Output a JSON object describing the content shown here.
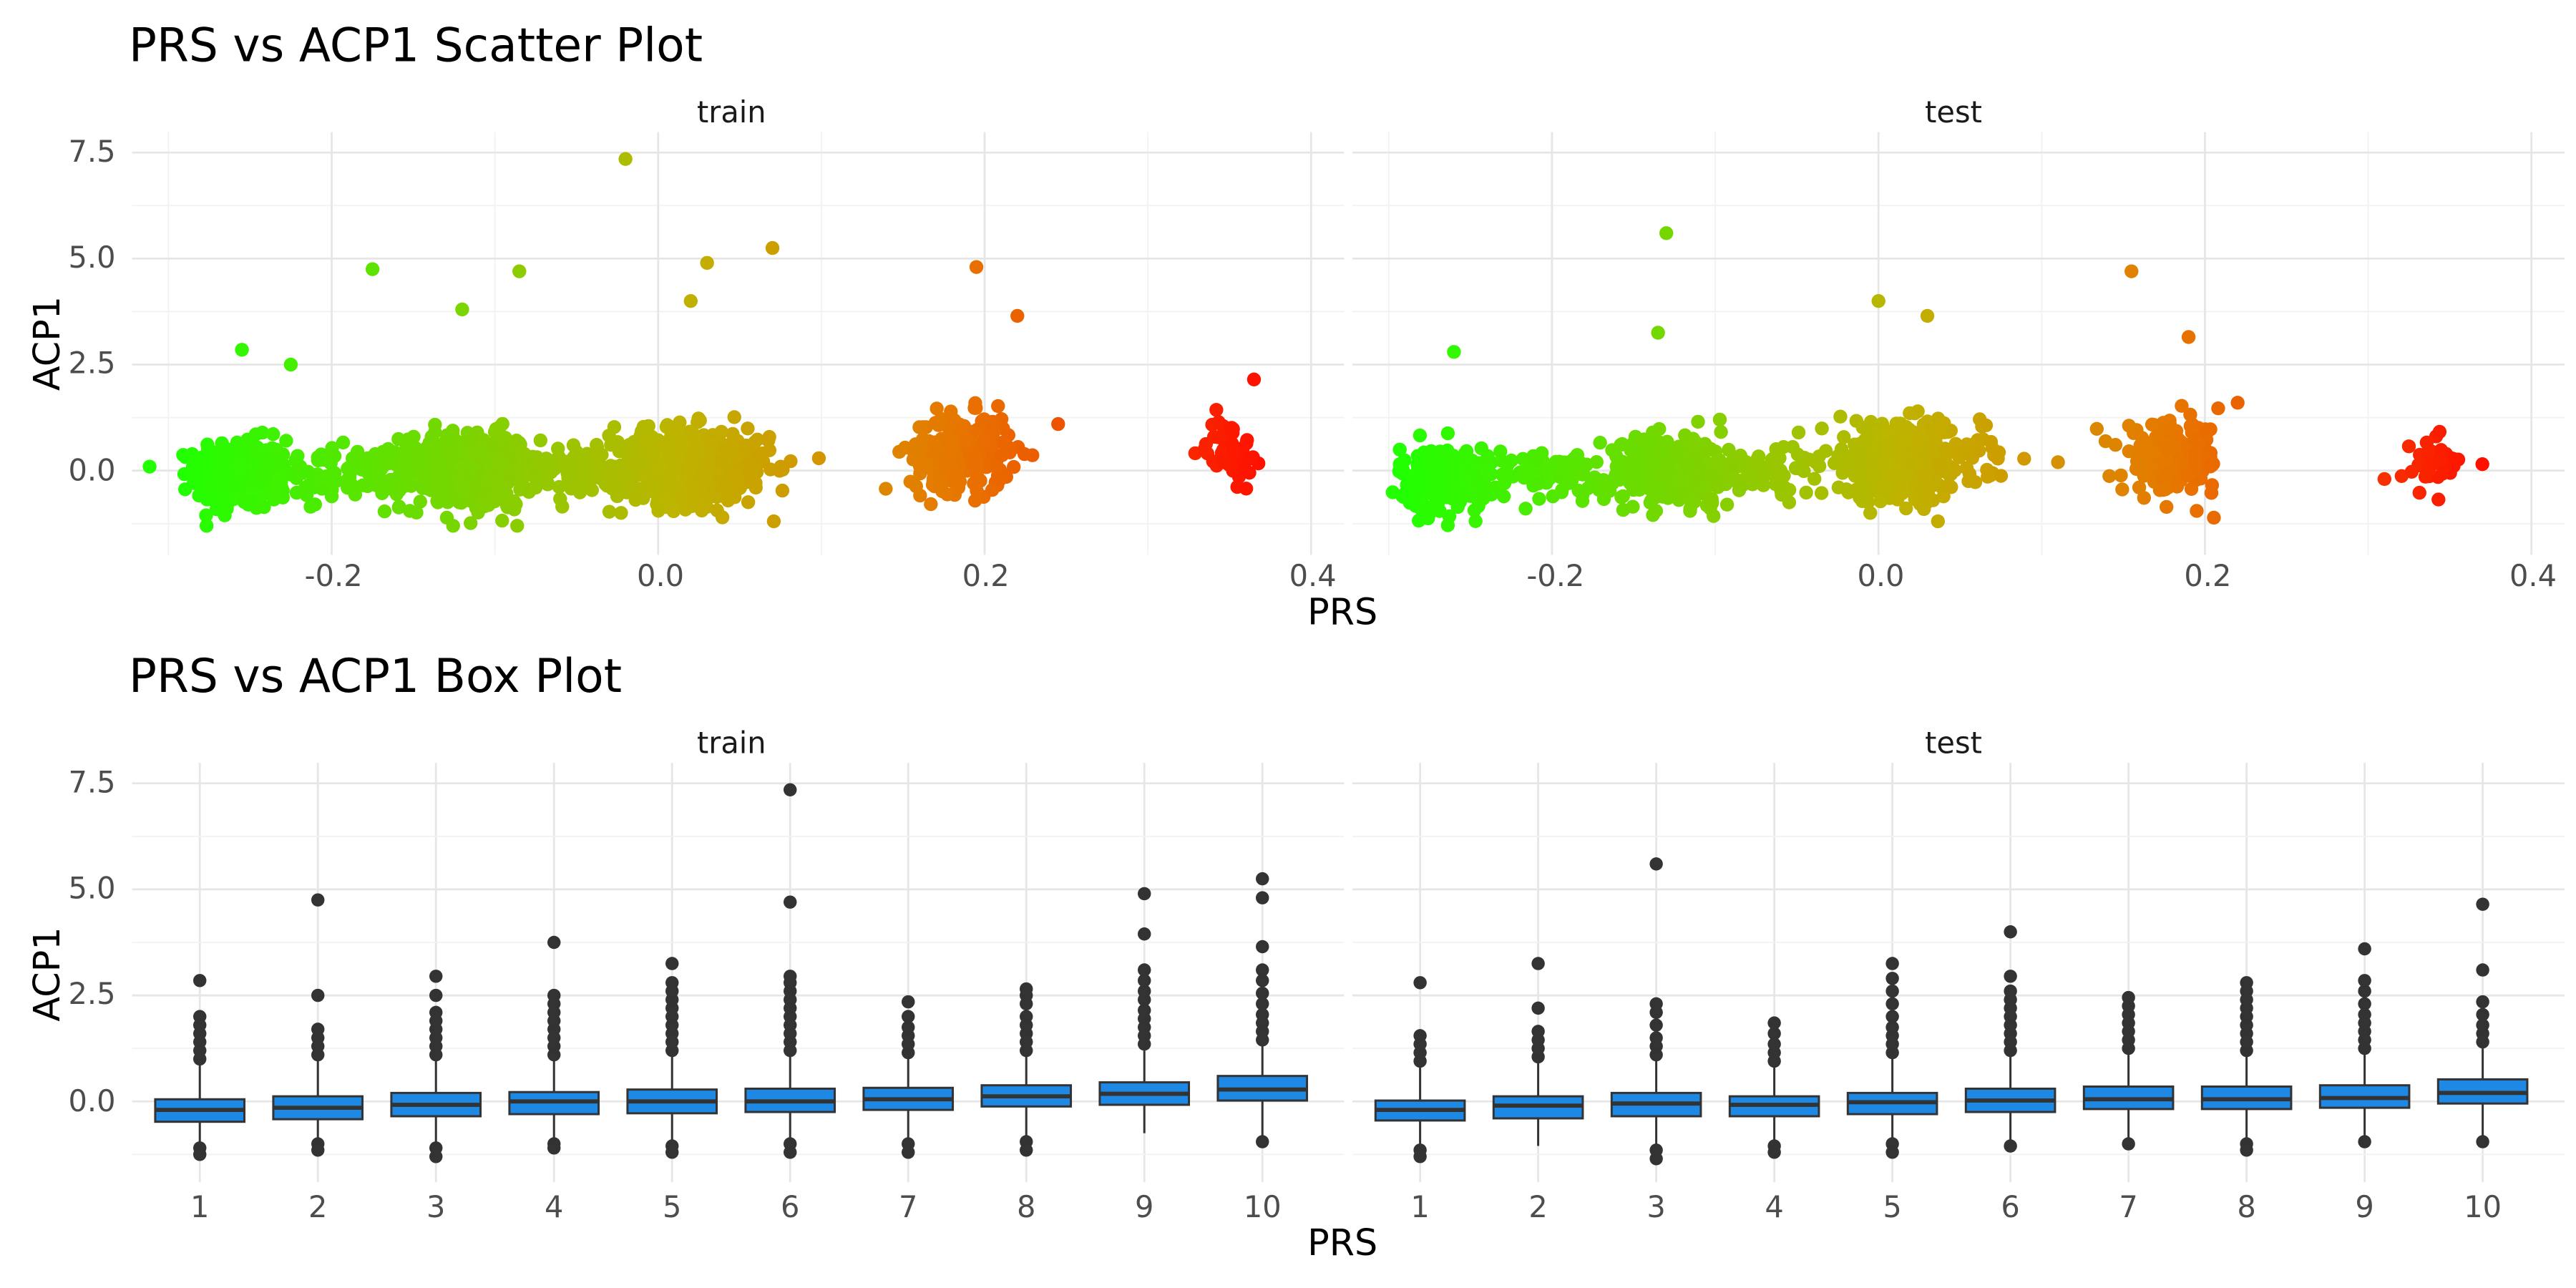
{
  "chart_data": [
    {
      "type": "scatter",
      "title": "PRS vs ACP1 Scatter Plot",
      "xlabel": "PRS",
      "ylabel": "ACP1",
      "xlim": [
        -0.3,
        0.4
      ],
      "ylim": [
        -1.5,
        7.5
      ],
      "x_ticks": [
        "-0.2",
        "0.0",
        "0.2",
        "0.4"
      ],
      "y_ticks": [
        "0.0",
        "2.5",
        "5.0",
        "7.5"
      ],
      "color_scale": {
        "low": "#22ff00",
        "high": "#ff0000",
        "mapped_to": "PRS"
      },
      "grid": true,
      "legend": "none",
      "panels": [
        {
          "name": "train",
          "clusters": [
            {
              "x_center": -0.255,
              "x_spread": 0.02,
              "n": 360,
              "acp1_mean": -0.1,
              "acp1_sd": 0.55
            },
            {
              "x_center": -0.19,
              "x_spread": 0.035,
              "n": 110,
              "acp1_mean": -0.1,
              "acp1_sd": 0.4
            },
            {
              "x_center": -0.115,
              "x_spread": 0.03,
              "n": 420,
              "acp1_mean": 0.0,
              "acp1_sd": 0.6
            },
            {
              "x_center": -0.05,
              "x_spread": 0.02,
              "n": 60,
              "acp1_mean": 0.0,
              "acp1_sd": 0.4
            },
            {
              "x_center": 0.02,
              "x_spread": 0.035,
              "n": 520,
              "acp1_mean": 0.1,
              "acp1_sd": 0.6
            },
            {
              "x_center": 0.185,
              "x_spread": 0.022,
              "n": 240,
              "acp1_mean": 0.4,
              "acp1_sd": 0.6
            },
            {
              "x_center": 0.35,
              "x_spread": 0.01,
              "n": 60,
              "acp1_mean": 0.5,
              "acp1_sd": 0.5
            }
          ],
          "outliers": [
            {
              "x": -0.02,
              "y": 7.35
            },
            {
              "x": -0.175,
              "y": 4.75
            },
            {
              "x": -0.085,
              "y": 4.7
            },
            {
              "x": 0.03,
              "y": 4.9
            },
            {
              "x": 0.07,
              "y": 5.25
            },
            {
              "x": 0.195,
              "y": 4.8
            },
            {
              "x": 0.02,
              "y": 4.0
            },
            {
              "x": 0.22,
              "y": 3.65
            },
            {
              "x": -0.12,
              "y": 3.8
            },
            {
              "x": -0.255,
              "y": 2.85
            },
            {
              "x": -0.225,
              "y": 2.5
            },
            {
              "x": 0.245,
              "y": 1.1
            },
            {
              "x": 0.365,
              "y": 2.15
            }
          ]
        },
        {
          "name": "test",
          "clusters": [
            {
              "x_center": -0.265,
              "x_spread": 0.02,
              "n": 260,
              "acp1_mean": -0.2,
              "acp1_sd": 0.5
            },
            {
              "x_center": -0.2,
              "x_spread": 0.035,
              "n": 80,
              "acp1_mean": -0.1,
              "acp1_sd": 0.4
            },
            {
              "x_center": -0.125,
              "x_spread": 0.03,
              "n": 300,
              "acp1_mean": 0.0,
              "acp1_sd": 0.55
            },
            {
              "x_center": -0.06,
              "x_spread": 0.02,
              "n": 50,
              "acp1_mean": 0.0,
              "acp1_sd": 0.4
            },
            {
              "x_center": 0.015,
              "x_spread": 0.035,
              "n": 380,
              "acp1_mean": 0.2,
              "acp1_sd": 0.6
            },
            {
              "x_center": 0.18,
              "x_spread": 0.022,
              "n": 170,
              "acp1_mean": 0.3,
              "acp1_sd": 0.55
            },
            {
              "x_center": 0.34,
              "x_spread": 0.012,
              "n": 35,
              "acp1_mean": 0.2,
              "acp1_sd": 0.45
            }
          ],
          "outliers": [
            {
              "x": -0.13,
              "y": 5.6
            },
            {
              "x": 0.155,
              "y": 4.7
            },
            {
              "x": 0.0,
              "y": 4.0
            },
            {
              "x": 0.03,
              "y": 3.65
            },
            {
              "x": -0.135,
              "y": 3.25
            },
            {
              "x": 0.19,
              "y": 3.15
            },
            {
              "x": -0.26,
              "y": 2.8
            },
            {
              "x": 0.22,
              "y": 1.6
            },
            {
              "x": 0.11,
              "y": 0.2
            },
            {
              "x": 0.31,
              "y": -0.2
            },
            {
              "x": 0.37,
              "y": 0.15
            },
            {
              "x": 0.195,
              "y": -0.95
            }
          ]
        }
      ]
    },
    {
      "type": "box",
      "title": "PRS vs ACP1 Box Plot",
      "xlabel": "PRS",
      "ylabel": "ACP1",
      "categories": [
        "1",
        "2",
        "3",
        "4",
        "5",
        "6",
        "7",
        "8",
        "9",
        "10"
      ],
      "ylim": [
        -1.5,
        7.5
      ],
      "y_ticks": [
        "0.0",
        "2.5",
        "5.0",
        "7.5"
      ],
      "box_color": "#1e88e5",
      "grid": true,
      "panels": [
        {
          "name": "train",
          "boxes": [
            {
              "q1": -0.48,
              "median": -0.2,
              "q3": 0.05,
              "lower": -1.0,
              "upper": 0.85,
              "outliers_high": [
                1.0,
                1.2,
                1.4,
                1.6,
                1.8,
                2.0,
                2.85
              ],
              "outliers_low": [
                -1.1,
                -1.25
              ]
            },
            {
              "q1": -0.42,
              "median": -0.15,
              "q3": 0.12,
              "lower": -1.0,
              "upper": 0.95,
              "outliers_high": [
                1.1,
                1.3,
                1.5,
                1.7,
                2.5,
                4.75
              ],
              "outliers_low": [
                -1.0,
                -1.15
              ]
            },
            {
              "q1": -0.35,
              "median": -0.08,
              "q3": 0.2,
              "lower": -1.0,
              "upper": 0.95,
              "outliers_high": [
                1.1,
                1.3,
                1.5,
                1.7,
                1.9,
                2.1,
                2.5,
                2.95
              ],
              "outliers_low": [
                -1.1,
                -1.3
              ]
            },
            {
              "q1": -0.3,
              "median": 0.0,
              "q3": 0.22,
              "lower": -0.9,
              "upper": 1.0,
              "outliers_high": [
                1.1,
                1.3,
                1.5,
                1.7,
                1.9,
                2.1,
                2.3,
                2.5,
                3.75
              ],
              "outliers_low": [
                -1.0,
                -1.1
              ]
            },
            {
              "q1": -0.28,
              "median": 0.0,
              "q3": 0.28,
              "lower": -1.0,
              "upper": 1.05,
              "outliers_high": [
                1.2,
                1.4,
                1.6,
                1.8,
                2.0,
                2.2,
                2.4,
                2.6,
                2.8,
                3.25
              ],
              "outliers_low": [
                -1.05,
                -1.2
              ]
            },
            {
              "q1": -0.25,
              "median": 0.0,
              "q3": 0.3,
              "lower": -0.9,
              "upper": 1.1,
              "outliers_high": [
                1.2,
                1.4,
                1.6,
                1.8,
                2.0,
                2.2,
                2.4,
                2.6,
                2.8,
                2.95,
                4.7,
                7.35
              ],
              "outliers_low": [
                -1.0,
                -1.2
              ]
            },
            {
              "q1": -0.2,
              "median": 0.05,
              "q3": 0.32,
              "lower": -0.9,
              "upper": 1.0,
              "outliers_high": [
                1.15,
                1.35,
                1.55,
                1.75,
                2.0,
                2.35
              ],
              "outliers_low": [
                -1.0,
                -1.2
              ]
            },
            {
              "q1": -0.12,
              "median": 0.12,
              "q3": 0.38,
              "lower": -0.85,
              "upper": 1.1,
              "outliers_high": [
                1.2,
                1.4,
                1.6,
                1.8,
                2.0,
                2.3,
                2.5,
                2.65
              ],
              "outliers_low": [
                -0.95,
                -1.15
              ]
            },
            {
              "q1": -0.08,
              "median": 0.18,
              "q3": 0.45,
              "lower": -0.75,
              "upper": 1.2,
              "outliers_high": [
                1.35,
                1.55,
                1.75,
                1.95,
                2.15,
                2.4,
                2.6,
                2.85,
                3.1,
                3.95,
                4.9
              ]
            },
            {
              "q1": 0.02,
              "median": 0.28,
              "q3": 0.6,
              "lower": -0.8,
              "upper": 1.3,
              "outliers_high": [
                1.45,
                1.65,
                1.85,
                2.05,
                2.3,
                2.55,
                2.85,
                3.1,
                3.65,
                4.8,
                5.25
              ],
              "outliers_low": [
                -0.95
              ]
            }
          ]
        },
        {
          "name": "test",
          "boxes": [
            {
              "q1": -0.45,
              "median": -0.2,
              "q3": 0.02,
              "lower": -1.0,
              "upper": 0.8,
              "outliers_high": [
                0.95,
                1.15,
                1.35,
                1.55,
                2.8
              ],
              "outliers_low": [
                -1.15,
                -1.3
              ]
            },
            {
              "q1": -0.4,
              "median": -0.1,
              "q3": 0.12,
              "lower": -1.05,
              "upper": 0.9,
              "outliers_high": [
                1.05,
                1.25,
                1.45,
                1.65,
                2.2,
                3.25
              ]
            },
            {
              "q1": -0.35,
              "median": -0.05,
              "q3": 0.2,
              "lower": -1.0,
              "upper": 0.95,
              "outliers_high": [
                1.1,
                1.3,
                1.5,
                1.8,
                2.1,
                2.3,
                5.6
              ],
              "outliers_low": [
                -1.15,
                -1.35
              ]
            },
            {
              "q1": -0.35,
              "median": -0.08,
              "q3": 0.12,
              "lower": -0.95,
              "upper": 0.8,
              "outliers_high": [
                0.95,
                1.15,
                1.35,
                1.6,
                1.85
              ],
              "outliers_low": [
                -1.05,
                -1.2
              ]
            },
            {
              "q1": -0.3,
              "median": -0.02,
              "q3": 0.2,
              "lower": -0.95,
              "upper": 1.0,
              "outliers_high": [
                1.15,
                1.35,
                1.55,
                1.75,
                2.0,
                2.3,
                2.6,
                2.9,
                3.25
              ],
              "outliers_low": [
                -1.0,
                -1.2
              ]
            },
            {
              "q1": -0.25,
              "median": 0.02,
              "q3": 0.3,
              "lower": -0.9,
              "upper": 1.1,
              "outliers_high": [
                1.2,
                1.4,
                1.6,
                1.8,
                2.0,
                2.2,
                2.4,
                2.6,
                2.95,
                4.0
              ],
              "outliers_low": [
                -1.05
              ]
            },
            {
              "q1": -0.18,
              "median": 0.05,
              "q3": 0.35,
              "lower": -0.85,
              "upper": 1.1,
              "outliers_high": [
                1.25,
                1.45,
                1.65,
                1.85,
                2.05,
                2.25,
                2.45
              ],
              "outliers_low": [
                -1.0
              ]
            },
            {
              "q1": -0.18,
              "median": 0.05,
              "q3": 0.35,
              "lower": -0.85,
              "upper": 1.05,
              "outliers_high": [
                1.2,
                1.4,
                1.6,
                1.8,
                2.0,
                2.2,
                2.4,
                2.6,
                2.8
              ],
              "outliers_low": [
                -1.0,
                -1.15
              ]
            },
            {
              "q1": -0.15,
              "median": 0.08,
              "q3": 0.38,
              "lower": -0.8,
              "upper": 1.1,
              "outliers_high": [
                1.25,
                1.45,
                1.65,
                1.85,
                2.05,
                2.3,
                2.6,
                2.85,
                3.6
              ],
              "outliers_low": [
                -0.95
              ]
            },
            {
              "q1": -0.05,
              "median": 0.2,
              "q3": 0.52,
              "lower": -0.8,
              "upper": 1.25,
              "outliers_high": [
                1.4,
                1.6,
                1.8,
                2.05,
                2.35,
                3.1,
                4.65
              ],
              "outliers_low": [
                -0.95
              ]
            }
          ]
        }
      ]
    }
  ]
}
